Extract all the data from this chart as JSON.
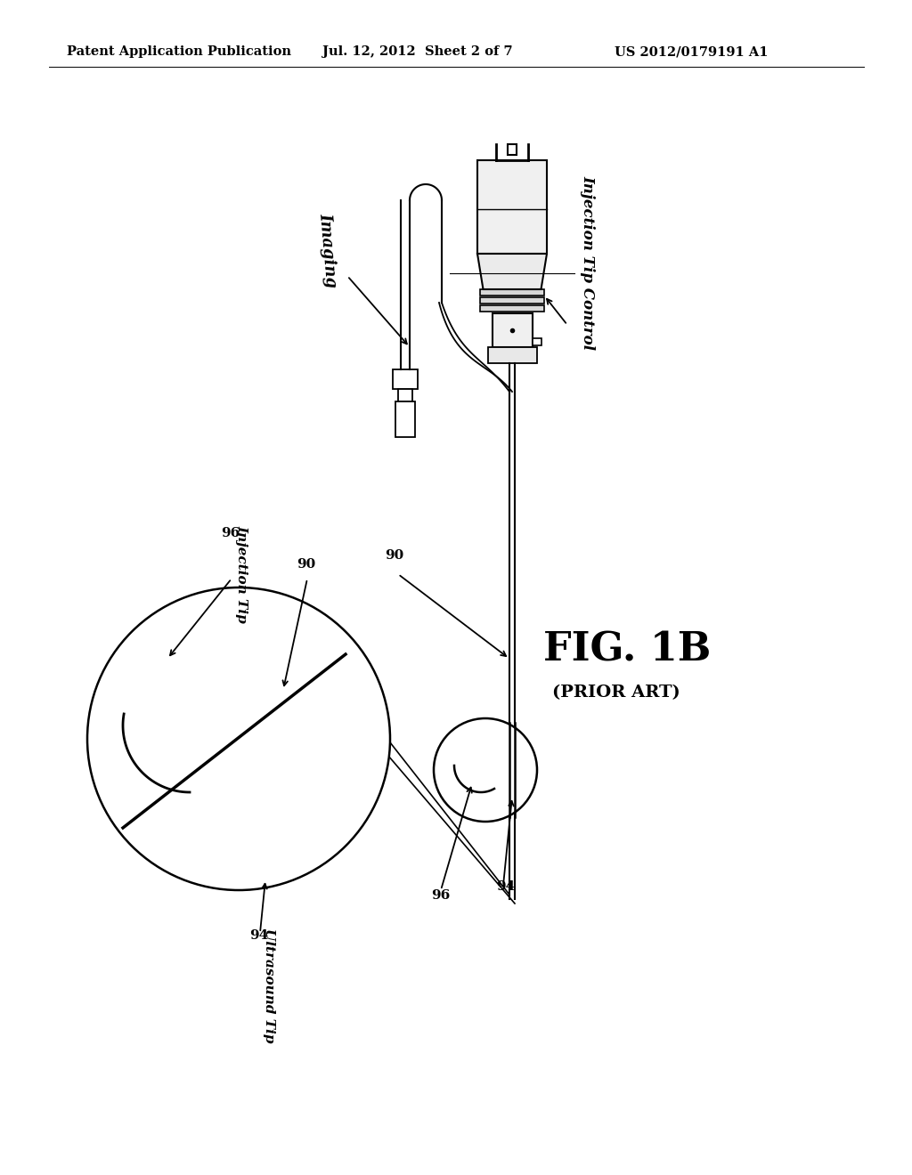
{
  "bg_color": "#ffffff",
  "header_left": "Patent Application Publication",
  "header_mid": "Jul. 12, 2012  Sheet 2 of 7",
  "header_right": "US 2012/0179191 A1",
  "fig_label": "FIG. 1B",
  "fig_sublabel": "(PRIOR ART)",
  "label_imaging": "Imaging",
  "label_injection_tip_control": "Injection Tip Control",
  "label_90_1": "90",
  "label_90_2": "90",
  "label_94_1": "94",
  "label_94_2": "94",
  "label_96_1": "96",
  "label_96_2": "96",
  "label_injection_tip": "Injection Tip",
  "label_ultrasound_tip": "Ultrasound Tip"
}
